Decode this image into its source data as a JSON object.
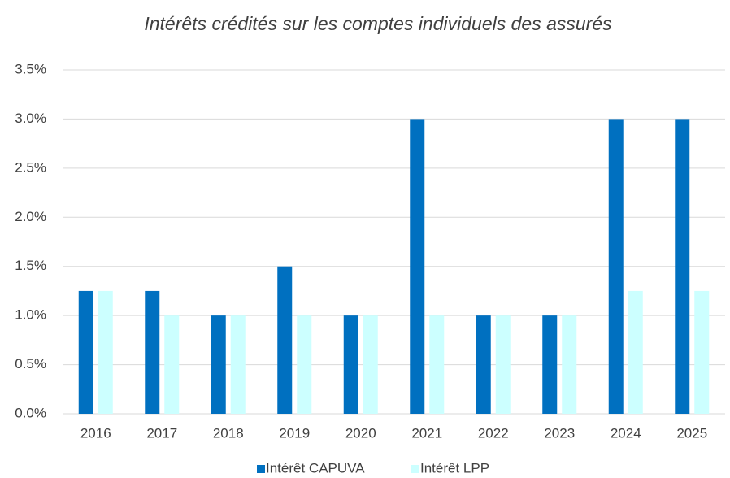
{
  "chart_data": {
    "type": "bar",
    "title": "Intérêts crédités sur les comptes individuels des assurés",
    "categories": [
      "2016",
      "2017",
      "2018",
      "2019",
      "2020",
      "2021",
      "2022",
      "2023",
      "2024",
      "2025"
    ],
    "series": [
      {
        "name": "Intérêt CAPUVA",
        "color": "#0070c0",
        "values": [
          1.25,
          1.25,
          1,
          1.5,
          1,
          3,
          1,
          1,
          3,
          3
        ]
      },
      {
        "name": "Intérêt LPP",
        "color": "#ccffff",
        "values": [
          1.25,
          1,
          1,
          1,
          1,
          1,
          1,
          1,
          1.25,
          1.25
        ]
      }
    ],
    "ylim": [
      0,
      3.5
    ],
    "yticks": [
      {
        "value": 0,
        "label": "0.0%"
      },
      {
        "value": 0.5,
        "label": "0.5%"
      },
      {
        "value": 1,
        "label": "1.0%"
      },
      {
        "value": 1.5,
        "label": "1.5%"
      },
      {
        "value": 2,
        "label": "2.0%"
      },
      {
        "value": 2.5,
        "label": "2.5%"
      },
      {
        "value": 3,
        "label": "3.0%"
      },
      {
        "value": 3.5,
        "label": "3.5%"
      }
    ],
    "grid": true,
    "legend": "bottom"
  }
}
